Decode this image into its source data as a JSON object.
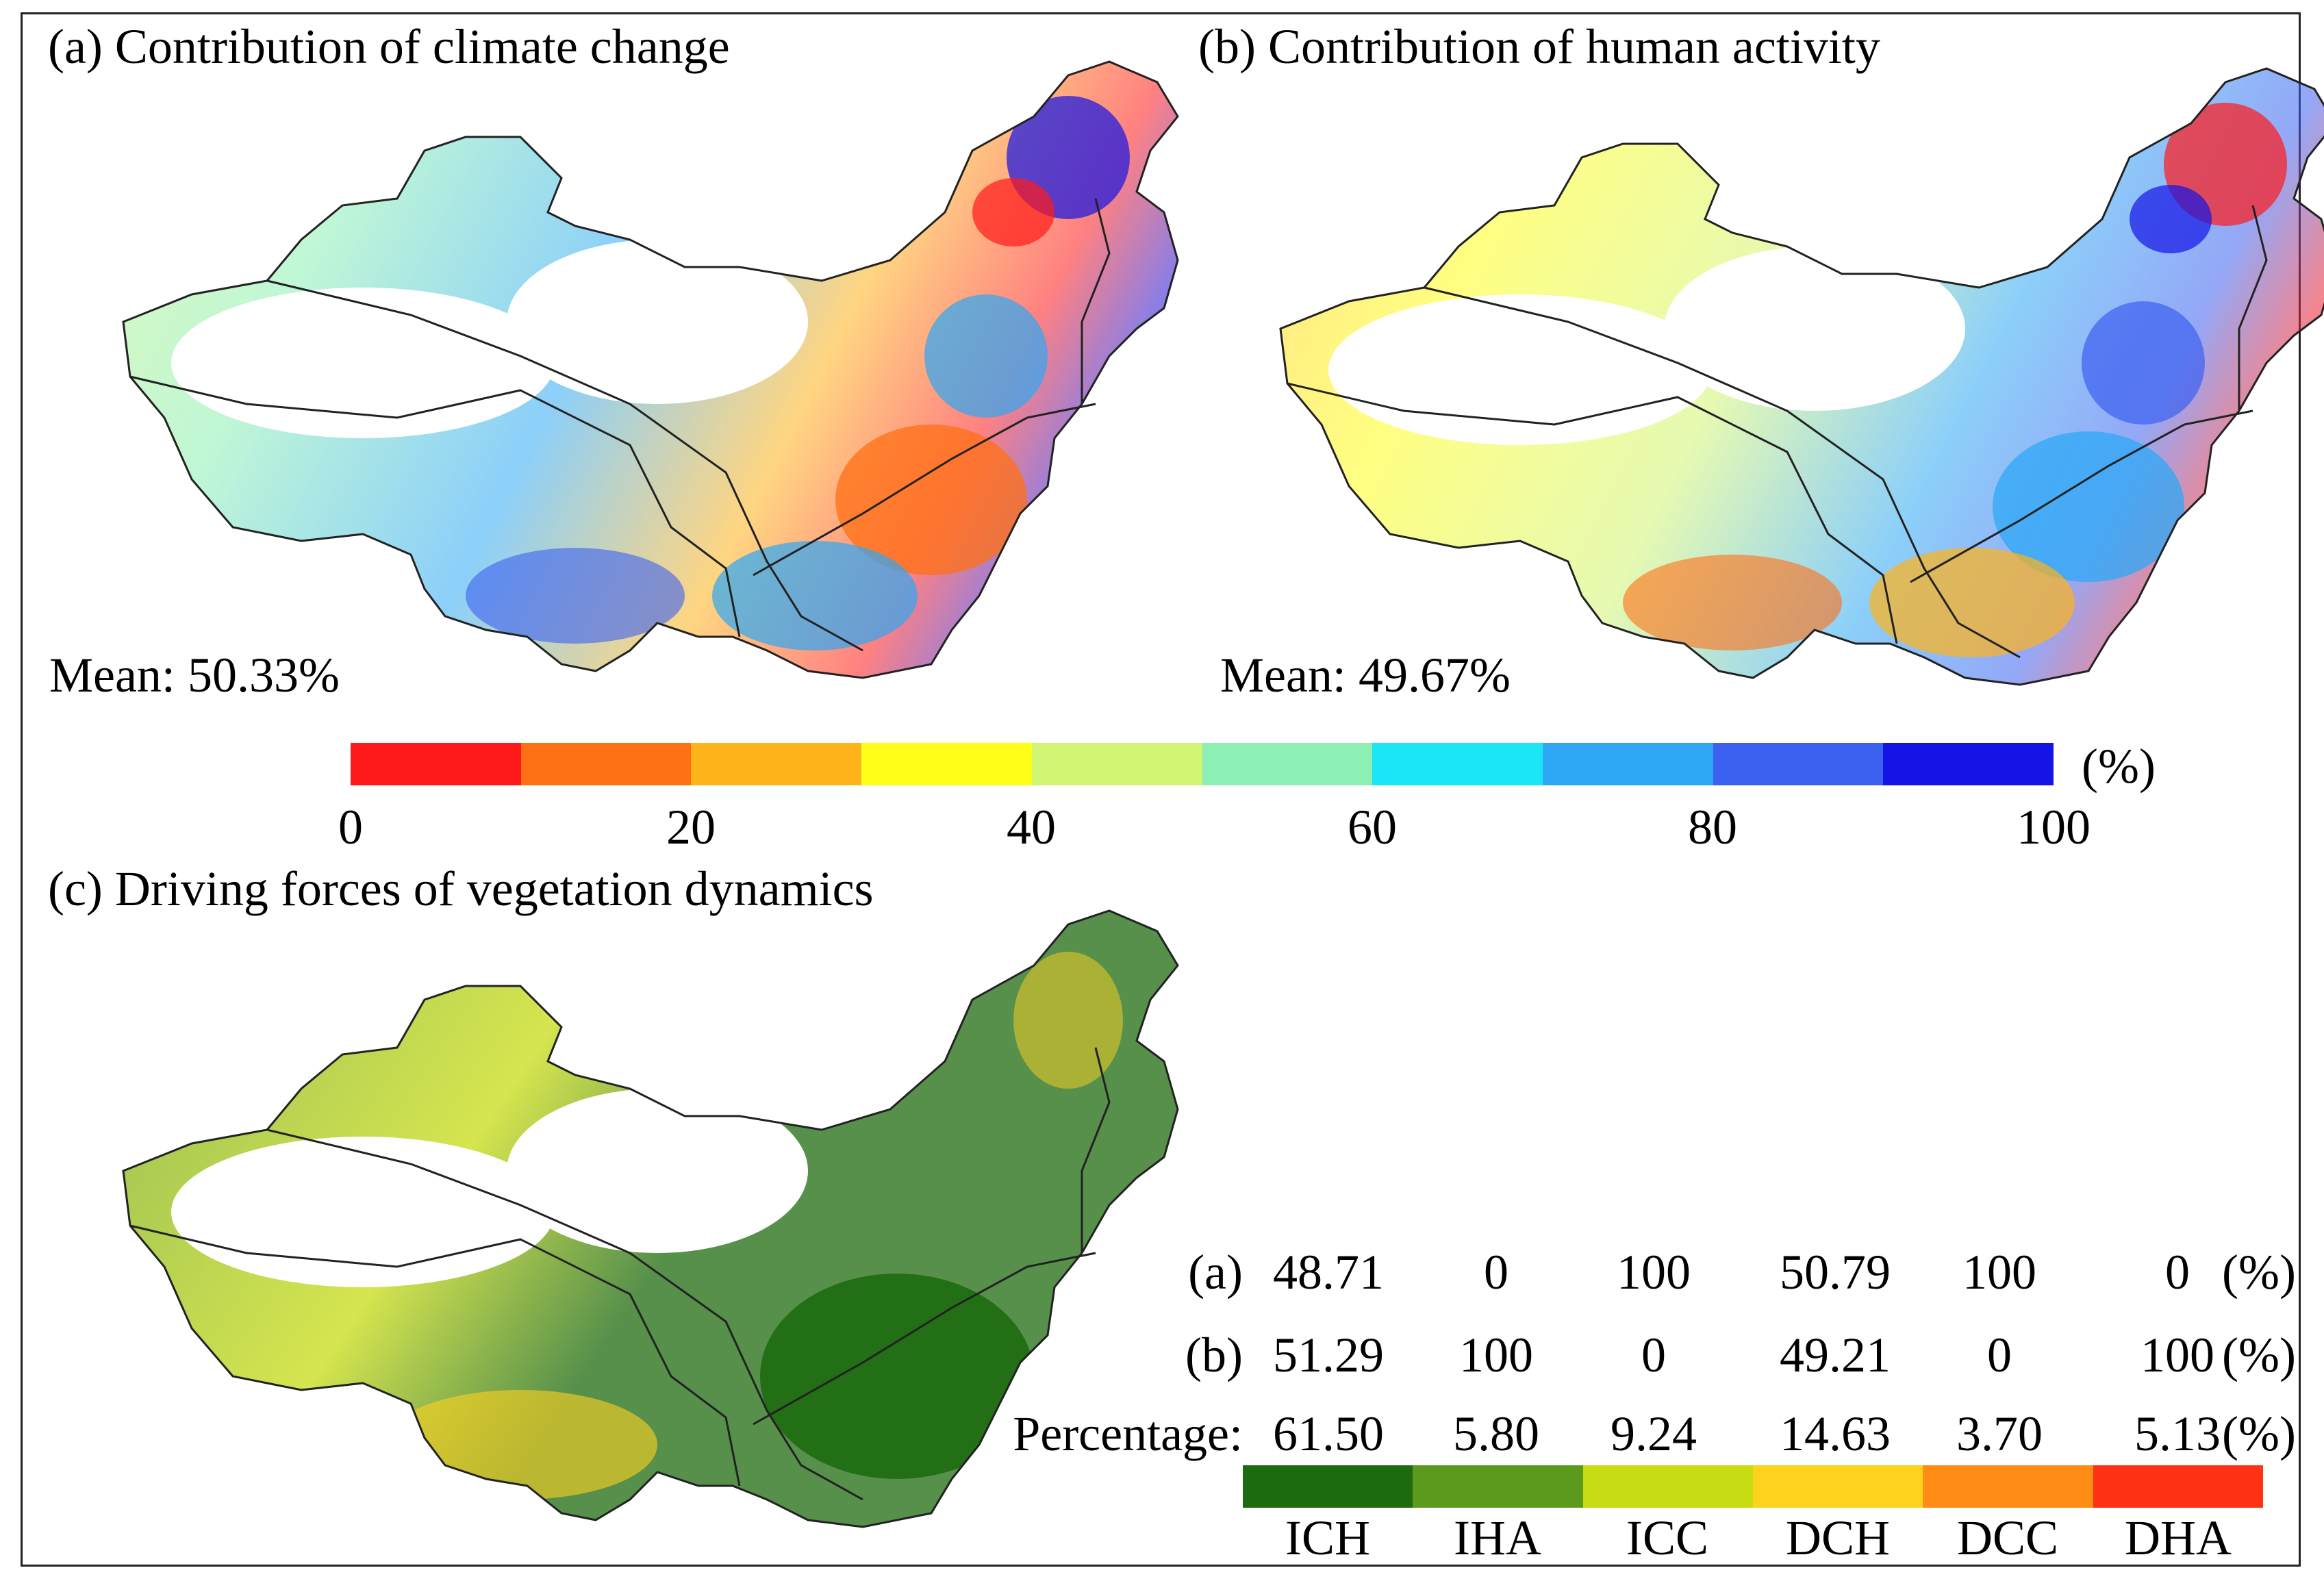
{
  "panels": {
    "a": {
      "title": "(a) Contribution of climate change",
      "mean": "Mean: 50.33%"
    },
    "b": {
      "title": "(b) Contribution of human activity",
      "mean": "Mean: 49.67%"
    },
    "c": {
      "title": "(c) Driving forces of vegetation dynamics"
    }
  },
  "colorbar": {
    "unit": "(%)",
    "ticks": [
      "0",
      "20",
      "40",
      "60",
      "80",
      "100"
    ],
    "colors": [
      "#ff1a1a",
      "#ff7014",
      "#ffb31a",
      "#ffff1a",
      "#d2f573",
      "#8cf0b4",
      "#1ae6f5",
      "#2ea8f5",
      "#3c60f0",
      "#1414e6"
    ]
  },
  "map_colors": {
    "outline": "#222222",
    "fill_land": "#ffffff"
  },
  "stats_table": {
    "unit": "(%)",
    "rows": [
      {
        "label": "(a)",
        "values": [
          "48.71",
          "0",
          "100",
          "50.79",
          "100",
          "0"
        ]
      },
      {
        "label": "(b)",
        "values": [
          "51.29",
          "100",
          "0",
          "49.21",
          "0",
          "100"
        ]
      },
      {
        "label": "Percentage:",
        "values": [
          "61.50",
          "5.80",
          "9.24",
          "14.63",
          "3.70",
          "5.13"
        ]
      }
    ]
  },
  "classes": [
    {
      "code": "ICH",
      "color": "#1e6b0f"
    },
    {
      "code": "IHA",
      "color": "#5c9a1e"
    },
    {
      "code": "ICC",
      "color": "#c8dc14"
    },
    {
      "code": "DCH",
      "color": "#ffd21e"
    },
    {
      "code": "DCC",
      "color": "#ff8c14"
    },
    {
      "code": "DHA",
      "color": "#ff3214"
    }
  ]
}
